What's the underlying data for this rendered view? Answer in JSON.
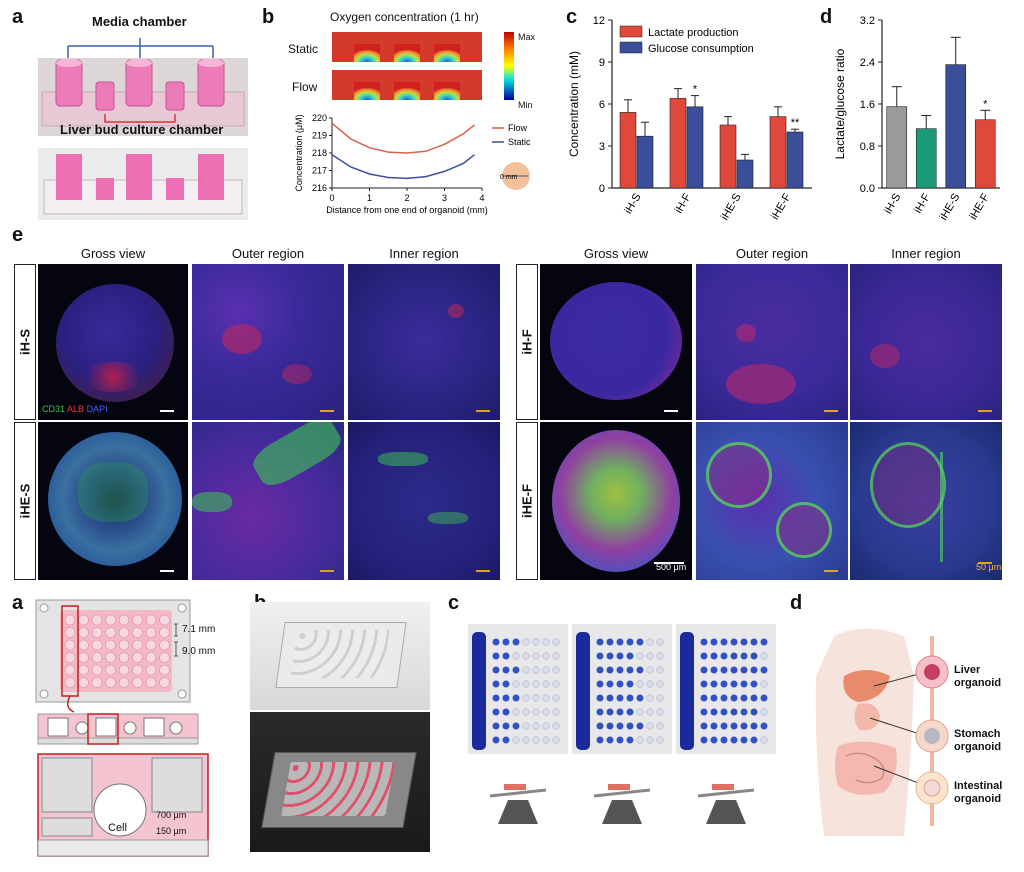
{
  "panel_labels": {
    "top_a": "a",
    "top_b": "b",
    "top_c": "c",
    "top_d": "d",
    "top_e": "e",
    "bot_a": "a",
    "bot_b": "b",
    "bot_c": "c",
    "bot_d": "d"
  },
  "panel_a": {
    "media_chamber": "Media chamber",
    "liver_bud_chamber": "Liver bud culture chamber"
  },
  "panel_b": {
    "title": "Oxygen concentration (1 hr)",
    "row_static": "Static",
    "row_flow": "Flow",
    "colorbar_max": "Max",
    "colorbar_min": "Min",
    "inset_label": "0 mm",
    "chart_data": {
      "type": "line",
      "xlabel": "Distance from one end of organoid (mm)",
      "ylabel": "Concentration (μM)",
      "xlim": [
        0,
        4
      ],
      "ylim": [
        216,
        220
      ],
      "xticks": [
        "0",
        "1",
        "2",
        "3",
        "4"
      ],
      "yticks": [
        "216",
        "217",
        "218",
        "219",
        "220"
      ],
      "series": [
        {
          "name": "Flow",
          "color": "#d9604a",
          "x": [
            0,
            0.5,
            1,
            1.5,
            2,
            2.5,
            3,
            3.5,
            3.8
          ],
          "y": [
            219.7,
            218.8,
            218.3,
            218.05,
            218.0,
            218.1,
            218.5,
            219.1,
            219.6
          ]
        },
        {
          "name": "Static",
          "color": "#3a4fa0",
          "x": [
            0,
            0.5,
            1,
            1.5,
            2,
            2.5,
            3,
            3.5,
            3.8
          ],
          "y": [
            217.9,
            217.2,
            216.8,
            216.6,
            216.55,
            216.65,
            216.95,
            217.4,
            217.9
          ]
        }
      ]
    }
  },
  "panel_c": {
    "chart_data": {
      "type": "bar",
      "categories": [
        "iH-S",
        "iH-F",
        "iHE-S",
        "iHE-F"
      ],
      "ylabel": "Concentration (mM)",
      "ylim": [
        0,
        12
      ],
      "yticks": [
        "0",
        "3",
        "6",
        "9",
        "12"
      ],
      "series": [
        {
          "name": "Lactate production",
          "color": "#e0483c",
          "values": [
            5.4,
            6.4,
            4.5,
            5.1
          ],
          "err": [
            0.9,
            0.7,
            0.6,
            0.7
          ]
        },
        {
          "name": "Glucose consumption",
          "color": "#3a4e9a",
          "values": [
            3.7,
            5.8,
            2.0,
            4.0
          ],
          "err": [
            1.0,
            0.8,
            0.4,
            0.2
          ]
        }
      ],
      "annotations": [
        {
          "category": "iH-F",
          "series": "Glucose consumption",
          "text": "*"
        },
        {
          "category": "iHE-F",
          "series": "Glucose consumption",
          "text": "**"
        }
      ]
    }
  },
  "panel_d": {
    "chart_data": {
      "type": "bar",
      "categories": [
        "iH-S",
        "iH-F",
        "iHE-S",
        "iHE-F"
      ],
      "ylabel": "Lactate/glucose ratio",
      "ylim": [
        0,
        3.2
      ],
      "yticks": [
        "0.0",
        "0.8",
        "1.6",
        "2.4",
        "3.2"
      ],
      "values": [
        1.55,
        1.13,
        2.35,
        1.3
      ],
      "err": [
        0.38,
        0.25,
        0.52,
        0.18
      ],
      "colors": [
        "#9a9a9a",
        "#1a9a78",
        "#3a4e9a",
        "#e0483c"
      ],
      "annotations": [
        {
          "category": "iHE-F",
          "text": "*"
        }
      ]
    }
  },
  "panel_e": {
    "col_headers": [
      "Gross view",
      "Outer region",
      "Inner region"
    ],
    "row_labels_left": [
      "iH-S",
      "iHE-S"
    ],
    "row_labels_right": [
      "iH-F",
      "iHE-F"
    ],
    "stain_cd31": "CD31",
    "stain_alb": "ALB",
    "stain_dapi": "DAPI",
    "scale_500": "500 μm",
    "scale_50": "50 μm"
  },
  "bottom_a": {
    "dim_1": "7.1 mm",
    "dim_2": "9.0 mm",
    "cell": "Cell",
    "dim_3": "700 μm",
    "dim_4": "150 μm"
  },
  "bottom_d": {
    "liver": "Liver",
    "liver2": "organoid",
    "stomach": "Stomach",
    "stomach2": "organoid",
    "intestinal": "Intestinal",
    "intestinal2": "organoid"
  }
}
